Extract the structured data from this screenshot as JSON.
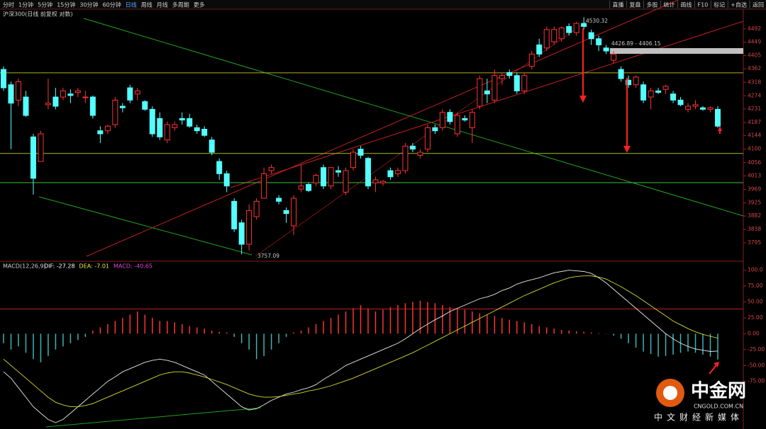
{
  "toolbar": {
    "periods": [
      "分时",
      "1分钟",
      "5分钟",
      "15分钟",
      "30分钟",
      "60分钟",
      "日线",
      "周线",
      "月线",
      "多周期",
      "更多"
    ],
    "actions": [
      "直播",
      "复盘",
      "多股",
      "统计",
      "画线",
      "F10",
      "标记",
      "+自选",
      "返回"
    ]
  },
  "watermark": {
    "logo": "中金网",
    "site": "CNGOLD.COM.CN",
    "slogan": "中文财经新媒体"
  },
  "chart_data": [
    {
      "type": "candlestick",
      "title": "沪深300(日线 前复权 对数)",
      "up_color": "#ff3232",
      "down_color": "#54ffff",
      "open": [
        4360,
        4310,
        4260,
        4270,
        4140,
        4060,
        4245,
        4270,
        4270,
        4280,
        4285,
        4270,
        4270,
        4160,
        4160,
        4180,
        4240,
        4300,
        4280,
        4255,
        4230,
        4200,
        4130,
        4170,
        4200,
        4200,
        4170,
        4165,
        4130,
        4060,
        4020,
        3930,
        3860,
        3790,
        3880,
        3940,
        4030,
        3940,
        3900,
        3850,
        3970,
        3985,
        3990,
        4040,
        3980,
        4030,
        3960,
        4040,
        4100,
        4070,
        3990,
        3990,
        4030,
        4020,
        4030,
        4110,
        4080,
        4100,
        4170,
        4170,
        4220,
        4150,
        4200,
        4170,
        4240,
        4290,
        4260,
        4330,
        4350,
        4340,
        4290,
        4370,
        4440,
        4430,
        4450,
        4460,
        4500,
        4480,
        4510,
        4480,
        4460,
        4430,
        4390,
        4360,
        4325,
        4310,
        4310,
        4270,
        4290,
        4295,
        4280,
        4260,
        4230,
        4240,
        4235,
        4230,
        4230
      ],
      "high": [
        4370,
        4320,
        4330,
        4290,
        4150,
        4160,
        4330,
        4300,
        4300,
        4295,
        4300,
        4290,
        4275,
        4175,
        4180,
        4270,
        4250,
        4310,
        4300,
        4260,
        4240,
        4220,
        4190,
        4190,
        4220,
        4215,
        4180,
        4175,
        4140,
        4070,
        4030,
        3940,
        3870,
        3920,
        3940,
        4040,
        4050,
        3950,
        3910,
        3950,
        4050,
        3990,
        4020,
        4050,
        4040,
        4045,
        4040,
        4100,
        4110,
        4075,
        4010,
        4000,
        4040,
        4040,
        4120,
        4120,
        4100,
        4180,
        4180,
        4230,
        4230,
        4220,
        4210,
        4230,
        4340,
        4330,
        4360,
        4350,
        4360,
        4350,
        4350,
        4420,
        4460,
        4500,
        4500,
        4500,
        4510,
        4515,
        4530.32,
        4490,
        4470,
        4440,
        4420,
        4370,
        4340,
        4340,
        4320,
        4300,
        4300,
        4310,
        4290,
        4270,
        4250,
        4260,
        4240,
        4240,
        4240
      ],
      "low": [
        4290,
        4100,
        4240,
        4205,
        3952,
        4060,
        4230,
        4230,
        4260,
        4250,
        4270,
        4250,
        4200,
        4120,
        4150,
        4170,
        4220,
        4250,
        4260,
        4225,
        4140,
        4130,
        4120,
        4160,
        4180,
        4170,
        4150,
        4140,
        4080,
        4000,
        3960,
        3830,
        3757.09,
        3770,
        3870,
        3940,
        4020,
        3920,
        3860,
        3820,
        3960,
        3960,
        3980,
        3970,
        3970,
        4010,
        3950,
        4030,
        4070,
        3970,
        3960,
        3980,
        4000,
        4010,
        4020,
        4090,
        4070,
        4090,
        4150,
        4160,
        4180,
        4140,
        4190,
        4120,
        4230,
        4250,
        4250,
        4310,
        4330,
        4280,
        4280,
        4360,
        4400,
        4420,
        4440,
        4450,
        4470,
        4470,
        4490,
        4440,
        4420,
        4410,
        4380,
        4320,
        4300,
        4300,
        4250,
        4230,
        4280,
        4280,
        4250,
        4240,
        4220,
        4230,
        4225,
        4220,
        4170
      ],
      "close": [
        4300,
        4250,
        4320,
        4210,
        4005,
        4150,
        4250,
        4240,
        4290,
        4275,
        4290,
        4270,
        4210,
        4150,
        4175,
        4260,
        4235,
        4260,
        4290,
        4230,
        4150,
        4140,
        4180,
        4180,
        4195,
        4175,
        4160,
        4145,
        4090,
        4020,
        3980,
        3840,
        3790,
        3900,
        3930,
        4020,
        4040,
        3930,
        3890,
        3940,
        3980,
        3965,
        4015,
        3980,
        4040,
        4025,
        4030,
        4090,
        4080,
        3980,
        4000,
        3995,
        4010,
        4030,
        4110,
        4100,
        4090,
        4170,
        4160,
        4220,
        4190,
        4210,
        4195,
        4220,
        4330,
        4280,
        4340,
        4340,
        4340,
        4290,
        4340,
        4410,
        4410,
        4490,
        4490,
        4495,
        4480,
        4510,
        4500,
        4460,
        4440,
        4420,
        4410,
        4330,
        4310,
        4335,
        4260,
        4290,
        4285,
        4305,
        4260,
        4245,
        4240,
        4245,
        4230,
        4235,
        4175
      ],
      "ylim": [
        3737,
        4554
      ],
      "yticks": [
        4492,
        4449,
        4405,
        4362,
        4318,
        4274,
        4231,
        4187,
        4144,
        4100,
        4056,
        4013,
        3969,
        3925,
        3882,
        3838,
        3795
      ],
      "levels": [
        {
          "value": 4349,
          "color": "#b0b020"
        },
        {
          "value": 4086,
          "color": "#a0c020"
        },
        {
          "value": 3991,
          "color": "#40c040"
        }
      ],
      "high_label": "4530.32",
      "low_label": "3757.09",
      "range_label": "4426.89 - 4406.15"
    },
    {
      "type": "macd",
      "title": "MACD(12,26,9)",
      "legend": [
        "DIF: -27.28",
        "DEA: -7.01",
        "MACD: -40.65"
      ],
      "legend_colors": [
        "#ffffff",
        "#e8e840",
        "#e040e0"
      ],
      "series": [
        {
          "name": "MACD",
          "color": "#ff3232",
          "neg_color": "#3cb4b4",
          "values": [
            -15,
            -25,
            -20,
            -30,
            -40,
            -45,
            -35,
            -25,
            -20,
            -15,
            -10,
            -5,
            5,
            10,
            15,
            20,
            25,
            30,
            35,
            30,
            25,
            20,
            20,
            18,
            15,
            12,
            10,
            8,
            5,
            3,
            2,
            -5,
            -15,
            -25,
            -40,
            -35,
            -25,
            -15,
            -5,
            2,
            5,
            10,
            15,
            20,
            25,
            30,
            35,
            40,
            45,
            40,
            35,
            38,
            42,
            45,
            48,
            50,
            52,
            50,
            48,
            45,
            42,
            40,
            38,
            35,
            32,
            30,
            28,
            25,
            22,
            20,
            18,
            15,
            12,
            10,
            8,
            6,
            5,
            4,
            3,
            2,
            1,
            0.5,
            -3,
            -8,
            -15,
            -22,
            -28,
            -32,
            -36,
            -35,
            -33,
            -30,
            -28,
            -30,
            -33,
            -36,
            -40.65
          ]
        },
        {
          "name": "DIF",
          "color": "#e8e8e8",
          "values": [
            -60,
            -70,
            -85,
            -100,
            -115,
            -125,
            -135,
            -140,
            -135,
            -125,
            -115,
            -105,
            -95,
            -85,
            -75,
            -68,
            -60,
            -55,
            -50,
            -45,
            -42,
            -40,
            -42,
            -45,
            -50,
            -55,
            -60,
            -65,
            -75,
            -85,
            -95,
            -105,
            -115,
            -120,
            -118,
            -112,
            -105,
            -100,
            -95,
            -92,
            -88,
            -85,
            -80,
            -72,
            -65,
            -58,
            -50,
            -45,
            -40,
            -35,
            -30,
            -25,
            -20,
            -15,
            -8,
            0,
            8,
            15,
            22,
            28,
            35,
            40,
            45,
            50,
            55,
            58,
            62,
            68,
            72,
            78,
            82,
            85,
            88,
            92,
            96,
            98,
            100,
            99,
            98,
            95,
            88,
            80,
            70,
            60,
            50,
            40,
            30,
            20,
            10,
            0,
            -8,
            -15,
            -20,
            -24,
            -26,
            -28,
            -27.28
          ]
        },
        {
          "name": "DEA",
          "color": "#d8d830",
          "values": [
            -40,
            -50,
            -60,
            -70,
            -80,
            -90,
            -100,
            -108,
            -112,
            -115,
            -115,
            -113,
            -110,
            -105,
            -100,
            -95,
            -90,
            -85,
            -80,
            -75,
            -70,
            -65,
            -62,
            -60,
            -60,
            -62,
            -65,
            -68,
            -72,
            -76,
            -80,
            -85,
            -90,
            -95,
            -98,
            -100,
            -100,
            -99,
            -97,
            -95,
            -93,
            -90,
            -88,
            -85,
            -82,
            -78,
            -74,
            -70,
            -65,
            -60,
            -55,
            -50,
            -45,
            -40,
            -35,
            -30,
            -24,
            -18,
            -12,
            -6,
            0,
            6,
            12,
            18,
            24,
            30,
            36,
            42,
            48,
            54,
            60,
            65,
            70,
            75,
            80,
            84,
            88,
            90,
            91,
            91,
            89,
            86,
            80,
            74,
            67,
            60,
            52,
            44,
            36,
            28,
            20,
            14,
            8,
            3,
            -1,
            -4,
            -7.01
          ]
        }
      ],
      "ylim": [
        -150,
        113
      ],
      "yticks": [
        {
          "value": 100,
          "label": "100.0"
        },
        {
          "value": 75,
          "label": "75.00"
        },
        {
          "value": 50,
          "label": "50.00"
        },
        {
          "value": 25,
          "label": "25.00"
        },
        {
          "value": 0,
          "label": "0.00"
        },
        {
          "value": -25,
          "label": "-25.00"
        },
        {
          "value": -50,
          "label": "-50.00"
        },
        {
          "value": -75,
          "label": "-75.00"
        }
      ],
      "ref_line": {
        "value": 39,
        "color": "#c02020"
      }
    }
  ]
}
